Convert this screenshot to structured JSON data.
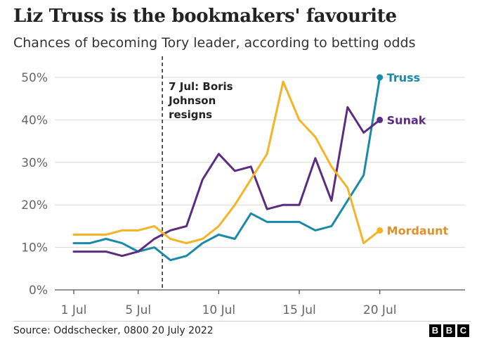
{
  "title": "Liz Truss is the bookmakers' favourite",
  "subtitle": "Chances of becoming Tory leader, according to betting odds",
  "source": "Source: Oddschecker, 0800 20 July 2022",
  "logo": [
    "B",
    "B",
    "C"
  ],
  "chart_data": {
    "type": "line",
    "x": [
      1,
      2,
      3,
      4,
      5,
      6,
      7,
      8,
      9,
      10,
      11,
      12,
      13,
      14,
      15,
      16,
      17,
      18,
      19,
      20
    ],
    "xlim": [
      0,
      24
    ],
    "xticks": [
      1,
      5,
      10,
      15,
      20
    ],
    "xtick_labels": [
      "1 Jul",
      "5 Jul",
      "10 Jul",
      "15 Jul",
      "20 Jul"
    ],
    "ylim": [
      0,
      50
    ],
    "yticks": [
      0,
      10,
      20,
      30,
      40,
      50
    ],
    "ytick_labels": [
      "0%",
      "10%",
      "20%",
      "30%",
      "40%",
      "50%"
    ],
    "grid": "horizontal",
    "series": [
      {
        "name": "Truss",
        "color": "#1a8aa8",
        "label_color": "#1a8aa8",
        "values": [
          11,
          11,
          12,
          11,
          9,
          10,
          7,
          8,
          11,
          13,
          12,
          18,
          16,
          16,
          16,
          14,
          15,
          21,
          27,
          50
        ]
      },
      {
        "name": "Sunak",
        "color": "#5b2d82",
        "label_color": "#5b2d82",
        "values": [
          9,
          9,
          9,
          8,
          9,
          12,
          14,
          15,
          26,
          32,
          28,
          29,
          19,
          20,
          20,
          31,
          21,
          43,
          37,
          40
        ]
      },
      {
        "name": "Mordaunt",
        "color": "#f6b326",
        "label_color": "#e0902a",
        "values": [
          13,
          13,
          13,
          14,
          14,
          15,
          12,
          11,
          12,
          15,
          20,
          26,
          32,
          49,
          40,
          36,
          29,
          24,
          11,
          14
        ]
      }
    ],
    "annotations": [
      {
        "x": 6.5,
        "lines": [
          "7 Jul: Boris",
          "Johnson",
          "resigns"
        ]
      }
    ]
  }
}
